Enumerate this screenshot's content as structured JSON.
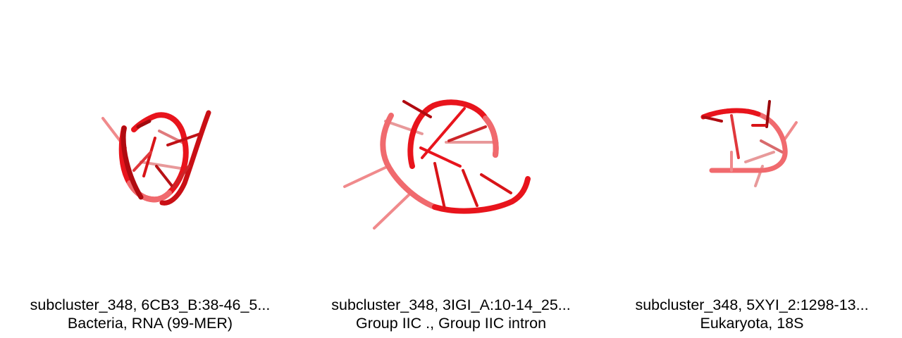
{
  "panels": [
    {
      "title": "subcluster_348, 6CB3_B:38-46_5...",
      "subtitle": "Bacteria, RNA (99-MER)"
    },
    {
      "title": "subcluster_348, 3IGI_A:10-14_25...",
      "subtitle": "Group IIC ., Group IIC intron"
    },
    {
      "title": "subcluster_348, 5XYI_2:1298-13...",
      "subtitle": "Eukaryota, 18S"
    }
  ],
  "colors": {
    "backbone": "#e8141c",
    "backbone_dark": "#b00a10",
    "backbone_light": "#f06a6e",
    "base": "#d81418",
    "base_faded": "#f08a8c",
    "background": "#ffffff"
  }
}
